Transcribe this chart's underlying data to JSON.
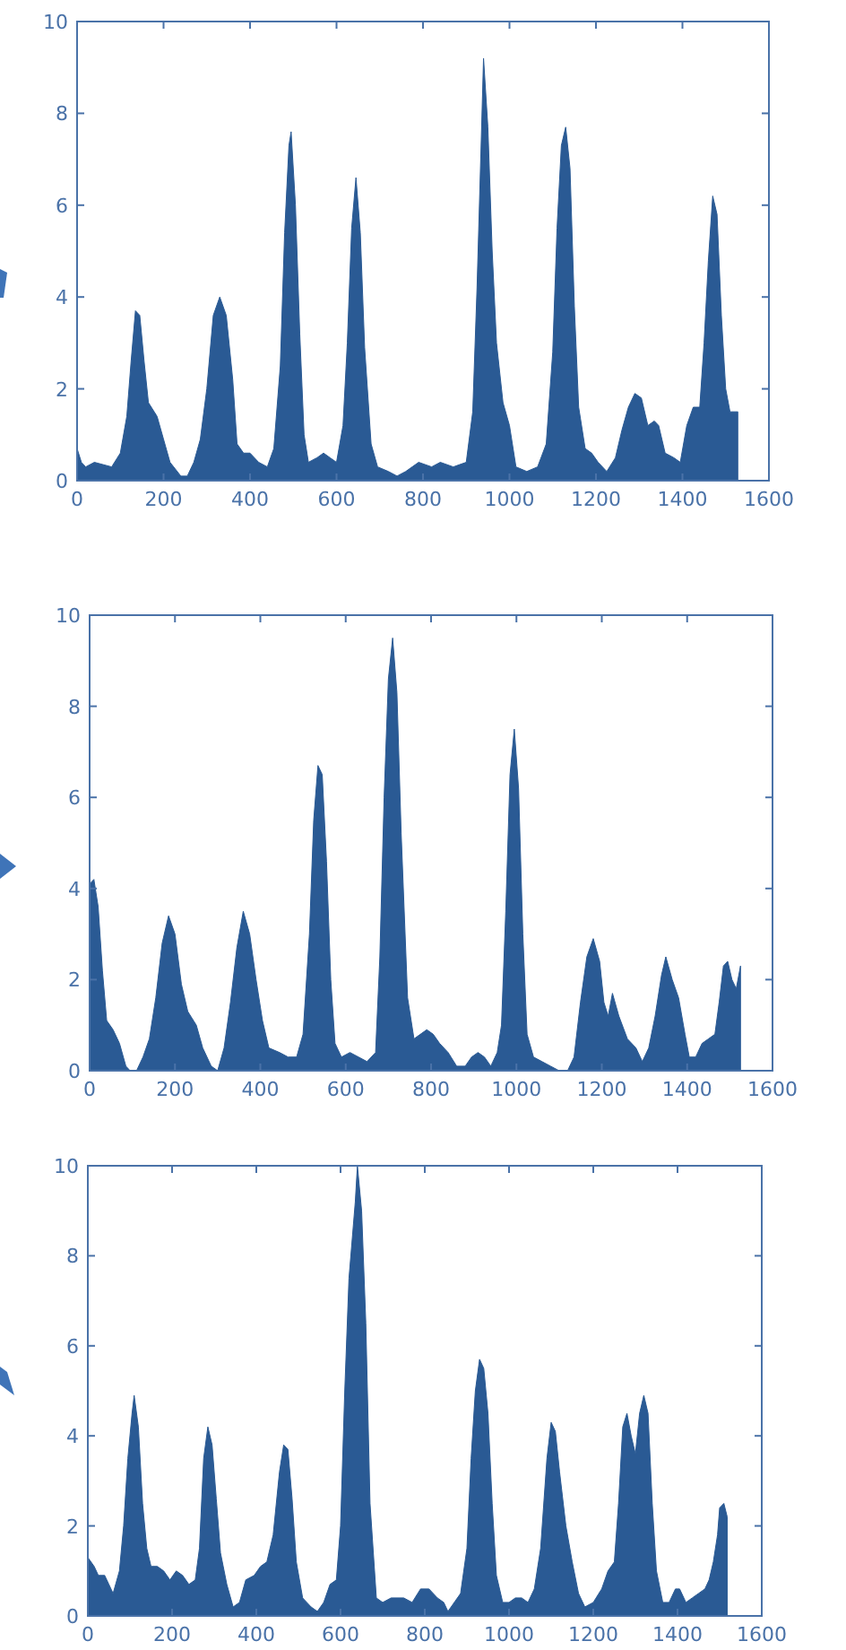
{
  "chart_data": [
    {
      "type": "area",
      "xlim": [
        0,
        1600
      ],
      "ylim": [
        0,
        10
      ],
      "xticks": [
        0,
        200,
        400,
        600,
        800,
        1000,
        1200,
        1400,
        1600
      ],
      "yticks": [
        0,
        2,
        4,
        6,
        8,
        10
      ],
      "grid": false,
      "series": [
        {
          "color": "#2a5a94",
          "x": [
            0,
            10,
            20,
            40,
            80,
            100,
            115,
            125,
            135,
            145,
            155,
            165,
            185,
            200,
            215,
            240,
            255,
            270,
            285,
            300,
            315,
            330,
            345,
            360,
            370,
            385,
            400,
            420,
            440,
            455,
            470,
            480,
            490,
            495,
            505,
            515,
            525,
            535,
            555,
            570,
            585,
            600,
            615,
            625,
            635,
            645,
            655,
            665,
            680,
            695,
            720,
            740,
            760,
            790,
            820,
            840,
            870,
            900,
            915,
            925,
            935,
            940,
            950,
            960,
            970,
            985,
            1000,
            1015,
            1040,
            1065,
            1085,
            1100,
            1110,
            1120,
            1130,
            1140,
            1150,
            1160,
            1175,
            1190,
            1205,
            1225,
            1245,
            1260,
            1275,
            1290,
            1305,
            1320,
            1335,
            1345,
            1360,
            1380,
            1395,
            1410,
            1425,
            1440,
            1450,
            1460,
            1470,
            1480,
            1490,
            1500,
            1510,
            1528
          ],
          "values": [
            0.7,
            0.4,
            0.3,
            0.4,
            0.3,
            0.6,
            1.4,
            2.6,
            3.7,
            3.6,
            2.6,
            1.7,
            1.4,
            0.9,
            0.4,
            0.1,
            0.1,
            0.4,
            0.9,
            2.0,
            3.6,
            4.0,
            3.6,
            2.2,
            0.8,
            0.6,
            0.6,
            0.4,
            0.3,
            0.7,
            2.5,
            5.4,
            7.3,
            7.6,
            6.0,
            3.2,
            1.0,
            0.4,
            0.5,
            0.6,
            0.5,
            0.4,
            1.2,
            3.0,
            5.5,
            6.6,
            5.4,
            2.9,
            0.8,
            0.3,
            0.2,
            0.1,
            0.2,
            0.4,
            0.3,
            0.4,
            0.3,
            0.4,
            1.5,
            4.2,
            7.5,
            9.2,
            7.7,
            5.0,
            3.0,
            1.7,
            1.2,
            0.3,
            0.2,
            0.3,
            0.8,
            2.8,
            5.5,
            7.3,
            7.7,
            6.8,
            3.8,
            1.6,
            0.7,
            0.6,
            0.4,
            0.2,
            0.5,
            1.1,
            1.6,
            1.9,
            1.8,
            1.2,
            1.3,
            1.2,
            0.6,
            0.5,
            0.4,
            1.2,
            1.6,
            1.6,
            3.0,
            4.8,
            6.2,
            5.8,
            3.6,
            2.0,
            1.5,
            1.5
          ]
        }
      ]
    },
    {
      "type": "area",
      "xlim": [
        0,
        1600
      ],
      "ylim": [
        0,
        10
      ],
      "xticks": [
        0,
        200,
        400,
        600,
        800,
        1000,
        1200,
        1400,
        1600
      ],
      "yticks": [
        0,
        2,
        4,
        6,
        8,
        10
      ],
      "grid": false,
      "series": [
        {
          "color": "#2a5a94",
          "x": [
            0,
            10,
            20,
            30,
            40,
            55,
            70,
            85,
            95,
            110,
            125,
            140,
            155,
            170,
            185,
            200,
            215,
            230,
            250,
            265,
            285,
            300,
            315,
            330,
            345,
            360,
            375,
            390,
            405,
            420,
            445,
            465,
            485,
            500,
            515,
            525,
            535,
            545,
            555,
            565,
            575,
            590,
            610,
            630,
            650,
            670,
            680,
            690,
            700,
            710,
            720,
            730,
            745,
            760,
            775,
            790,
            805,
            820,
            840,
            860,
            880,
            895,
            910,
            925,
            940,
            955,
            965,
            975,
            985,
            995,
            1005,
            1015,
            1025,
            1040,
            1060,
            1080,
            1100,
            1120,
            1135,
            1150,
            1165,
            1180,
            1195,
            1205,
            1215,
            1225,
            1240,
            1260,
            1280,
            1295,
            1310,
            1325,
            1340,
            1350,
            1365,
            1380,
            1395,
            1405,
            1420,
            1435,
            1450,
            1465,
            1475,
            1485,
            1495,
            1505,
            1515,
            1525
          ],
          "values": [
            4.1,
            4.2,
            3.6,
            2.2,
            1.1,
            0.9,
            0.6,
            0.1,
            0,
            0,
            0.3,
            0.7,
            1.6,
            2.8,
            3.4,
            3.0,
            1.9,
            1.3,
            1.0,
            0.5,
            0.1,
            0,
            0.5,
            1.5,
            2.7,
            3.5,
            3.0,
            2.0,
            1.1,
            0.5,
            0.4,
            0.3,
            0.3,
            0.8,
            3.0,
            5.5,
            6.7,
            6.5,
            4.6,
            2.0,
            0.6,
            0.3,
            0.4,
            0.3,
            0.2,
            0.4,
            2.5,
            6.0,
            8.6,
            9.5,
            8.3,
            5.2,
            1.6,
            0.7,
            0.8,
            0.9,
            0.8,
            0.6,
            0.4,
            0.1,
            0.1,
            0.3,
            0.4,
            0.3,
            0.1,
            0.4,
            1.0,
            3.5,
            6.5,
            7.5,
            6.2,
            3.0,
            0.8,
            0.3,
            0.2,
            0.1,
            0,
            0,
            0.3,
            1.5,
            2.5,
            2.9,
            2.4,
            1.5,
            1.2,
            1.7,
            1.2,
            0.7,
            0.5,
            0.2,
            0.5,
            1.2,
            2.1,
            2.5,
            2.0,
            1.6,
            0.8,
            0.3,
            0.3,
            0.6,
            0.7,
            0.8,
            1.5,
            2.3,
            2.4,
            2.0,
            1.8,
            2.3
          ]
        }
      ]
    },
    {
      "type": "area",
      "xlim": [
        0,
        1600
      ],
      "ylim": [
        0,
        10
      ],
      "xticks": [
        0,
        200,
        400,
        600,
        800,
        1000,
        1200,
        1400,
        1600
      ],
      "yticks": [
        0,
        2,
        4,
        6,
        8,
        10
      ],
      "grid": false,
      "series": [
        {
          "color": "#2a5a94",
          "x": [
            0,
            15,
            25,
            40,
            50,
            60,
            75,
            85,
            95,
            105,
            110,
            120,
            130,
            140,
            150,
            165,
            180,
            195,
            210,
            225,
            240,
            255,
            265,
            275,
            285,
            295,
            305,
            315,
            330,
            345,
            360,
            375,
            395,
            410,
            425,
            440,
            455,
            465,
            475,
            485,
            495,
            510,
            530,
            545,
            560,
            575,
            590,
            600,
            610,
            620,
            635,
            640,
            650,
            660,
            670,
            685,
            700,
            720,
            750,
            770,
            790,
            810,
            830,
            845,
            855,
            870,
            885,
            900,
            910,
            920,
            930,
            940,
            950,
            960,
            970,
            985,
            1000,
            1015,
            1030,
            1045,
            1060,
            1075,
            1090,
            1100,
            1110,
            1120,
            1135,
            1150,
            1165,
            1180,
            1200,
            1220,
            1235,
            1250,
            1260,
            1270,
            1280,
            1290,
            1300,
            1310,
            1320,
            1330,
            1340,
            1350,
            1365,
            1380,
            1395,
            1405,
            1420,
            1435,
            1450,
            1465,
            1475,
            1485,
            1495,
            1500,
            1510,
            1518
          ],
          "values": [
            1.3,
            1.1,
            0.9,
            0.9,
            0.7,
            0.5,
            1.0,
            2.0,
            3.5,
            4.5,
            4.9,
            4.2,
            2.5,
            1.5,
            1.1,
            1.1,
            1.0,
            0.8,
            1.0,
            0.9,
            0.7,
            0.8,
            1.5,
            3.5,
            4.2,
            3.8,
            2.6,
            1.4,
            0.7,
            0.2,
            0.3,
            0.8,
            0.9,
            1.1,
            1.2,
            1.8,
            3.2,
            3.8,
            3.7,
            2.6,
            1.2,
            0.4,
            0.2,
            0.1,
            0.3,
            0.7,
            0.8,
            2.0,
            5.0,
            7.5,
            9.2,
            10,
            9.0,
            6.5,
            2.5,
            0.4,
            0.3,
            0.4,
            0.4,
            0.3,
            0.6,
            0.6,
            0.4,
            0.3,
            0.1,
            0.3,
            0.5,
            1.5,
            3.5,
            5.0,
            5.7,
            5.5,
            4.5,
            2.5,
            0.9,
            0.3,
            0.3,
            0.4,
            0.4,
            0.3,
            0.6,
            1.5,
            3.5,
            4.3,
            4.1,
            3.2,
            2.0,
            1.2,
            0.5,
            0.2,
            0.3,
            0.6,
            1.0,
            1.2,
            2.5,
            4.2,
            4.5,
            4.0,
            3.6,
            4.5,
            4.9,
            4.5,
            2.5,
            1.0,
            0.3,
            0.3,
            0.6,
            0.6,
            0.3,
            0.4,
            0.5,
            0.6,
            0.8,
            1.2,
            1.8,
            2.4,
            2.5,
            2.2
          ]
        }
      ]
    }
  ]
}
